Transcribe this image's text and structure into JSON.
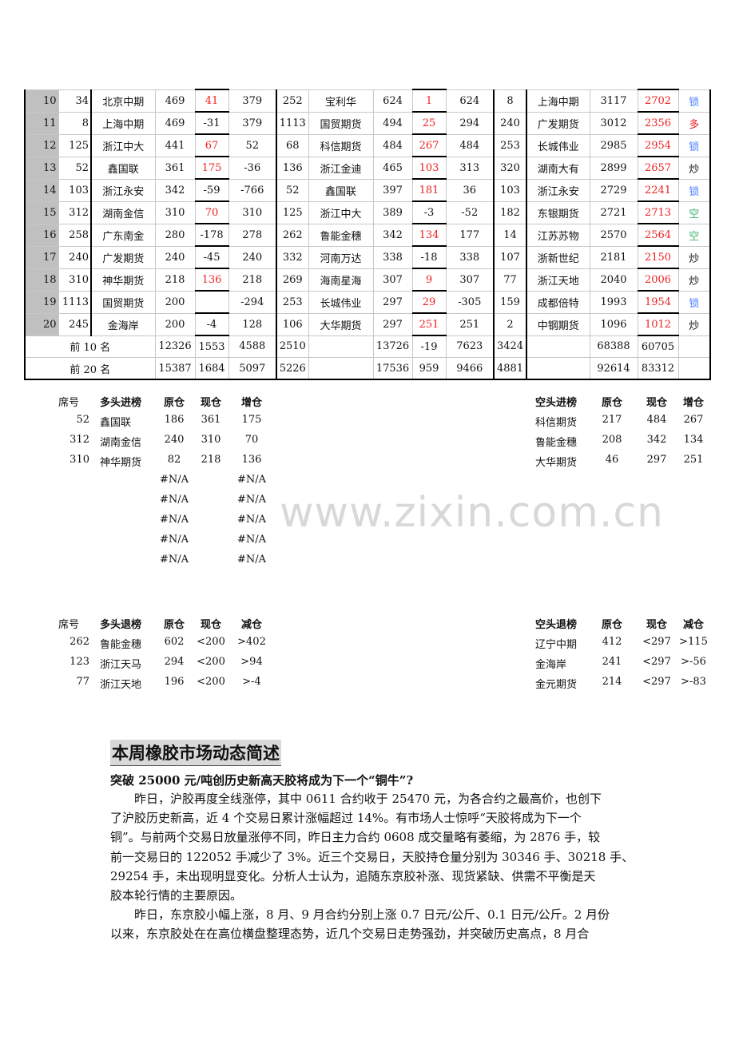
{
  "colors": {
    "rank_bg": "#c0c0c0",
    "red": "#ee2222",
    "blue": "#4a7fff",
    "green": "#3cb371"
  },
  "table": {
    "rows": [
      [
        "10",
        "34",
        "北京中期",
        "469",
        "41",
        "379",
        "252",
        "宝利华",
        "624",
        "1",
        "624",
        "8",
        "上海中期",
        "3117",
        "2702",
        "锁"
      ],
      [
        "11",
        "8",
        "上海中期",
        "469",
        "-31",
        "379",
        "1113",
        "国贸期货",
        "494",
        "25",
        "294",
        "240",
        "广发期货",
        "3012",
        "2356",
        "多"
      ],
      [
        "12",
        "125",
        "浙江中大",
        "441",
        "67",
        "52",
        "68",
        "科信期货",
        "484",
        "267",
        "484",
        "253",
        "长城伟业",
        "2985",
        "2954",
        "锁"
      ],
      [
        "13",
        "52",
        "鑫国联",
        "361",
        "175",
        "-36",
        "136",
        "浙江金迪",
        "465",
        "103",
        "313",
        "320",
        "湖南大有",
        "2899",
        "2657",
        "炒"
      ],
      [
        "14",
        "103",
        "浙江永安",
        "342",
        "-59",
        "-766",
        "52",
        "鑫国联",
        "397",
        "181",
        "36",
        "103",
        "浙江永安",
        "2729",
        "2241",
        "锁"
      ],
      [
        "15",
        "312",
        "湖南金信",
        "310",
        "70",
        "310",
        "125",
        "浙江中大",
        "389",
        "-3",
        "-52",
        "182",
        "东银期货",
        "2721",
        "2713",
        "空"
      ],
      [
        "16",
        "258",
        "广东南金",
        "280",
        "-178",
        "278",
        "262",
        "鲁能金穗",
        "342",
        "134",
        "177",
        "14",
        "江苏苏物",
        "2570",
        "2564",
        "空"
      ],
      [
        "17",
        "240",
        "广发期货",
        "240",
        "-45",
        "240",
        "332",
        "河南万达",
        "338",
        "-18",
        "338",
        "107",
        "浙新世纪",
        "2181",
        "2150",
        "炒"
      ],
      [
        "18",
        "310",
        "神华期货",
        "218",
        "136",
        "218",
        "269",
        "海南星海",
        "307",
        "9",
        "307",
        "77",
        "浙江天地",
        "2040",
        "2006",
        "炒"
      ],
      [
        "19",
        "1113",
        "国贸期货",
        "200",
        "",
        "-294",
        "253",
        "长城伟业",
        "297",
        "29",
        "-305",
        "159",
        "成都倍特",
        "1993",
        "1954",
        "锁"
      ],
      [
        "20",
        "245",
        "金海岸",
        "200",
        "-4",
        "128",
        "106",
        "大华期货",
        "297",
        "251",
        "251",
        "2",
        "中钢期货",
        "1096",
        "1012",
        "炒"
      ]
    ],
    "totals": [
      [
        "前 10 名",
        "12326",
        "1553",
        "4588",
        "2510",
        "",
        "13726",
        "-19",
        "7623",
        "3424",
        "",
        "68388",
        "60705",
        ""
      ],
      [
        "前 20 名",
        "15387",
        "1684",
        "5097",
        "5226",
        "",
        "17536",
        "959",
        "9466",
        "4881",
        "",
        "92614",
        "83312",
        ""
      ]
    ]
  },
  "long_in": {
    "headers": [
      "席号",
      "多头进榜",
      "原仓",
      "现仓",
      "增仓"
    ],
    "rows": [
      [
        "52",
        "鑫国联",
        "186",
        "361",
        "175"
      ],
      [
        "312",
        "湖南金信",
        "240",
        "310",
        "70"
      ],
      [
        "310",
        "神华期货",
        "82",
        "218",
        "136"
      ],
      [
        "",
        "",
        "#N/A",
        "",
        "#N/A"
      ],
      [
        "",
        "",
        "#N/A",
        "",
        "#N/A"
      ],
      [
        "",
        "",
        "#N/A",
        "",
        "#N/A"
      ],
      [
        "",
        "",
        "#N/A",
        "",
        "#N/A"
      ],
      [
        "",
        "",
        "#N/A",
        "",
        "#N/A"
      ]
    ]
  },
  "short_in": {
    "headers": [
      "空头进榜",
      "原仓",
      "现仓",
      "增仓"
    ],
    "rows": [
      [
        "科信期货",
        "217",
        "484",
        "267"
      ],
      [
        "鲁能金穗",
        "208",
        "342",
        "134"
      ],
      [
        "大华期货",
        "46",
        "297",
        "251"
      ]
    ]
  },
  "long_out": {
    "headers": [
      "席号",
      "多头退榜",
      "原仓",
      "现仓",
      "减仓"
    ],
    "rows": [
      [
        "262",
        "鲁能金穗",
        "602",
        "<200",
        ">402"
      ],
      [
        "123",
        "浙江天马",
        "294",
        "<200",
        ">94"
      ],
      [
        "77",
        "浙江天地",
        "196",
        "<200",
        ">-4"
      ]
    ]
  },
  "short_out": {
    "headers": [
      "空头退榜",
      "原仓",
      "现仓",
      "减仓"
    ],
    "rows": [
      [
        "辽宁中期",
        "412",
        "<297",
        ">115"
      ],
      [
        "金海岸",
        "241",
        "<297",
        ">-56"
      ],
      [
        "金元期货",
        "214",
        "<297",
        ">-83"
      ]
    ]
  },
  "watermark": "www.zixin.com.cn",
  "article": {
    "heading": "本周橡胶市场动态简述",
    "subtitle": "突破 25000 元/吨创历史新高天胶将成为下一个“铜牛”?",
    "p1": [
      "　　昨日，沪胶再度全线涨停，其中 0611 合约收于 25470 元，为各合约之最高价，也创下",
      "了沪胶历史新高，近 4 个交易日累计涨幅超过 14%。有市场人士惊呼“天胶将成为下一个",
      "铜”。与前两个交易日放量涨停不同，昨日主力合约 0608 成交量略有萎缩，为 2876 手，较",
      "前一交易日的 122052 手减少了 3%。近三个交易日，天胶持仓量分别为 30346 手、30218 手、",
      "29254 手，未出现明显变化。分析人士认为，追随东京胶补涨、现货紧缺、供需不平衡是天",
      "胶本轮行情的主要原因。"
    ],
    "p2": [
      "　　昨日，东京胶小幅上涨，8 月、9 月合约分别上涨 0.7 日元/公斤、0.1 日元/公斤。2 月份",
      "以来，东京胶处在在高位横盘整理态势，近几个交易日走势强劲，并突破历史高点，8 月合"
    ]
  }
}
